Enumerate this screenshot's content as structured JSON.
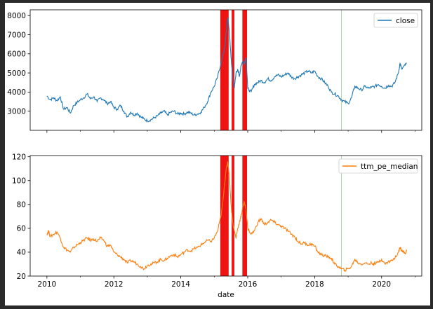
{
  "chart_data": [
    {
      "type": "line",
      "series": [
        {
          "name": "close",
          "color": "#1f77b4",
          "points": [
            [
              2010.0,
              3800
            ],
            [
              2010.1,
              3600
            ],
            [
              2010.2,
              3700
            ],
            [
              2010.3,
              3550
            ],
            [
              2010.4,
              3750
            ],
            [
              2010.5,
              3100
            ],
            [
              2010.6,
              3200
            ],
            [
              2010.7,
              2900
            ],
            [
              2010.8,
              3300
            ],
            [
              2010.9,
              3450
            ],
            [
              2011.0,
              3600
            ],
            [
              2011.1,
              3700
            ],
            [
              2011.2,
              3900
            ],
            [
              2011.3,
              3650
            ],
            [
              2011.4,
              3750
            ],
            [
              2011.5,
              3500
            ],
            [
              2011.6,
              3700
            ],
            [
              2011.7,
              3600
            ],
            [
              2011.8,
              3400
            ],
            [
              2011.9,
              3500
            ],
            [
              2012.0,
              3200
            ],
            [
              2012.1,
              3100
            ],
            [
              2012.2,
              3300
            ],
            [
              2012.3,
              3000
            ],
            [
              2012.4,
              2700
            ],
            [
              2012.5,
              2950
            ],
            [
              2012.6,
              2800
            ],
            [
              2012.7,
              2900
            ],
            [
              2012.8,
              2700
            ],
            [
              2012.9,
              2600
            ],
            [
              2013.0,
              2500
            ],
            [
              2013.1,
              2550
            ],
            [
              2013.2,
              2650
            ],
            [
              2013.3,
              2750
            ],
            [
              2013.4,
              2900
            ],
            [
              2013.5,
              3000
            ],
            [
              2013.6,
              2800
            ],
            [
              2013.7,
              2950
            ],
            [
              2013.8,
              3000
            ],
            [
              2013.9,
              2850
            ],
            [
              2014.0,
              2900
            ],
            [
              2014.1,
              2850
            ],
            [
              2014.2,
              2950
            ],
            [
              2014.3,
              2900
            ],
            [
              2014.4,
              2800
            ],
            [
              2014.5,
              2850
            ],
            [
              2014.6,
              2950
            ],
            [
              2014.7,
              3200
            ],
            [
              2014.8,
              3500
            ],
            [
              2014.9,
              4000
            ],
            [
              2015.0,
              4300
            ],
            [
              2015.1,
              4800
            ],
            [
              2015.2,
              5500
            ],
            [
              2015.3,
              6200
            ],
            [
              2015.35,
              7000
            ],
            [
              2015.4,
              7900
            ],
            [
              2015.45,
              7200
            ],
            [
              2015.5,
              5800
            ],
            [
              2015.55,
              4800
            ],
            [
              2015.6,
              4200
            ],
            [
              2015.65,
              5000
            ],
            [
              2015.7,
              5200
            ],
            [
              2015.75,
              4800
            ],
            [
              2015.8,
              5400
            ],
            [
              2015.85,
              5600
            ],
            [
              2015.9,
              5500
            ],
            [
              2015.95,
              5800
            ],
            [
              2016.0,
              4200
            ],
            [
              2016.1,
              4000
            ],
            [
              2016.2,
              4400
            ],
            [
              2016.3,
              4500
            ],
            [
              2016.4,
              4600
            ],
            [
              2016.5,
              4500
            ],
            [
              2016.6,
              4700
            ],
            [
              2016.7,
              4600
            ],
            [
              2016.8,
              4800
            ],
            [
              2016.9,
              4900
            ],
            [
              2017.0,
              4800
            ],
            [
              2017.1,
              4900
            ],
            [
              2017.2,
              5000
            ],
            [
              2017.3,
              4800
            ],
            [
              2017.4,
              4700
            ],
            [
              2017.5,
              4800
            ],
            [
              2017.6,
              4900
            ],
            [
              2017.7,
              5000
            ],
            [
              2017.8,
              5100
            ],
            [
              2017.9,
              5000
            ],
            [
              2018.0,
              5100
            ],
            [
              2018.1,
              4800
            ],
            [
              2018.2,
              4700
            ],
            [
              2018.3,
              4500
            ],
            [
              2018.4,
              4300
            ],
            [
              2018.5,
              4000
            ],
            [
              2018.6,
              3900
            ],
            [
              2018.7,
              3800
            ],
            [
              2018.8,
              3600
            ],
            [
              2018.9,
              3500
            ],
            [
              2019.0,
              3400
            ],
            [
              2019.1,
              3700
            ],
            [
              2019.2,
              4300
            ],
            [
              2019.3,
              4200
            ],
            [
              2019.4,
              4100
            ],
            [
              2019.5,
              4300
            ],
            [
              2019.6,
              4200
            ],
            [
              2019.7,
              4250
            ],
            [
              2019.8,
              4300
            ],
            [
              2019.9,
              4400
            ],
            [
              2020.0,
              4300
            ],
            [
              2020.1,
              4200
            ],
            [
              2020.2,
              4350
            ],
            [
              2020.3,
              4300
            ],
            [
              2020.4,
              4500
            ],
            [
              2020.5,
              5000
            ],
            [
              2020.55,
              5500
            ],
            [
              2020.6,
              5200
            ],
            [
              2020.7,
              5400
            ],
            [
              2020.75,
              5500
            ]
          ]
        }
      ],
      "ylim": [
        2000,
        8300
      ],
      "yticks": [
        3000,
        4000,
        5000,
        6000,
        7000,
        8000
      ],
      "xlim": [
        2009.5,
        2021.2
      ],
      "spans": [
        [
          2015.18,
          2015.43
        ],
        [
          2015.52,
          2015.6
        ],
        [
          2015.84,
          2015.98
        ]
      ],
      "vline": 2018.8,
      "legend_position": "top-right"
    },
    {
      "type": "line",
      "series": [
        {
          "name": "ttm_pe_median",
          "color": "#ff7f0e",
          "points": [
            [
              2010.0,
              55
            ],
            [
              2010.05,
              58
            ],
            [
              2010.1,
              53
            ],
            [
              2010.2,
              55
            ],
            [
              2010.3,
              57
            ],
            [
              2010.4,
              52
            ],
            [
              2010.5,
              44
            ],
            [
              2010.6,
              42
            ],
            [
              2010.7,
              40
            ],
            [
              2010.8,
              44
            ],
            [
              2010.9,
              46
            ],
            [
              2011.0,
              48
            ],
            [
              2011.1,
              50
            ],
            [
              2011.2,
              52
            ],
            [
              2011.3,
              50
            ],
            [
              2011.4,
              51
            ],
            [
              2011.5,
              49
            ],
            [
              2011.6,
              52
            ],
            [
              2011.7,
              50
            ],
            [
              2011.8,
              45
            ],
            [
              2011.9,
              46
            ],
            [
              2012.0,
              40
            ],
            [
              2012.1,
              38
            ],
            [
              2012.2,
              36
            ],
            [
              2012.3,
              34
            ],
            [
              2012.4,
              31
            ],
            [
              2012.5,
              33
            ],
            [
              2012.6,
              32
            ],
            [
              2012.7,
              30
            ],
            [
              2012.8,
              28
            ],
            [
              2012.9,
              26
            ],
            [
              2013.0,
              29
            ],
            [
              2013.1,
              30
            ],
            [
              2013.2,
              31
            ],
            [
              2013.3,
              32
            ],
            [
              2013.4,
              34
            ],
            [
              2013.5,
              33
            ],
            [
              2013.6,
              35
            ],
            [
              2013.7,
              37
            ],
            [
              2013.8,
              38
            ],
            [
              2013.9,
              36
            ],
            [
              2014.0,
              38
            ],
            [
              2014.1,
              40
            ],
            [
              2014.2,
              42
            ],
            [
              2014.3,
              41
            ],
            [
              2014.4,
              43
            ],
            [
              2014.5,
              44
            ],
            [
              2014.6,
              46
            ],
            [
              2014.7,
              48
            ],
            [
              2014.8,
              50
            ],
            [
              2014.9,
              49
            ],
            [
              2015.0,
              52
            ],
            [
              2015.1,
              58
            ],
            [
              2015.2,
              70
            ],
            [
              2015.25,
              80
            ],
            [
              2015.3,
              95
            ],
            [
              2015.35,
              108
            ],
            [
              2015.4,
              116
            ],
            [
              2015.45,
              105
            ],
            [
              2015.5,
              80
            ],
            [
              2015.55,
              65
            ],
            [
              2015.6,
              58
            ],
            [
              2015.65,
              52
            ],
            [
              2015.7,
              60
            ],
            [
              2015.75,
              65
            ],
            [
              2015.8,
              70
            ],
            [
              2015.85,
              78
            ],
            [
              2015.9,
              82
            ],
            [
              2015.95,
              76
            ],
            [
              2016.0,
              60
            ],
            [
              2016.1,
              55
            ],
            [
              2016.2,
              58
            ],
            [
              2016.3,
              65
            ],
            [
              2016.4,
              68
            ],
            [
              2016.5,
              63
            ],
            [
              2016.6,
              65
            ],
            [
              2016.7,
              67
            ],
            [
              2016.8,
              65
            ],
            [
              2016.9,
              63
            ],
            [
              2017.0,
              62
            ],
            [
              2017.1,
              60
            ],
            [
              2017.2,
              58
            ],
            [
              2017.3,
              55
            ],
            [
              2017.4,
              53
            ],
            [
              2017.5,
              49
            ],
            [
              2017.6,
              47
            ],
            [
              2017.7,
              48
            ],
            [
              2017.8,
              46
            ],
            [
              2017.9,
              47
            ],
            [
              2018.0,
              45
            ],
            [
              2018.1,
              40
            ],
            [
              2018.2,
              38
            ],
            [
              2018.3,
              37
            ],
            [
              2018.4,
              36
            ],
            [
              2018.5,
              35
            ],
            [
              2018.6,
              30
            ],
            [
              2018.7,
              28
            ],
            [
              2018.8,
              26
            ],
            [
              2018.9,
              25
            ],
            [
              2019.0,
              26
            ],
            [
              2019.1,
              28
            ],
            [
              2019.2,
              34
            ],
            [
              2019.3,
              31
            ],
            [
              2019.4,
              30
            ],
            [
              2019.5,
              31
            ],
            [
              2019.6,
              30
            ],
            [
              2019.7,
              31
            ],
            [
              2019.8,
              30
            ],
            [
              2019.9,
              32
            ],
            [
              2020.0,
              34
            ],
            [
              2020.1,
              30
            ],
            [
              2020.2,
              32
            ],
            [
              2020.3,
              33
            ],
            [
              2020.4,
              35
            ],
            [
              2020.5,
              40
            ],
            [
              2020.55,
              44
            ],
            [
              2020.6,
              42
            ],
            [
              2020.65,
              40
            ],
            [
              2020.7,
              39
            ],
            [
              2020.75,
              41
            ]
          ]
        }
      ],
      "ylim": [
        20,
        121
      ],
      "yticks": [
        20,
        40,
        60,
        80,
        100,
        120
      ],
      "xlim": [
        2009.5,
        2021.2
      ],
      "xticks": [
        2010,
        2012,
        2014,
        2016,
        2018,
        2020
      ],
      "xlabel": "date",
      "spans": [
        [
          2015.18,
          2015.43
        ],
        [
          2015.52,
          2015.6
        ],
        [
          2015.84,
          2015.98
        ]
      ],
      "vline": 2018.8,
      "legend_position": "top-right"
    }
  ],
  "colors": {
    "span": "#ee0000",
    "vline": "#a8d8a8"
  }
}
